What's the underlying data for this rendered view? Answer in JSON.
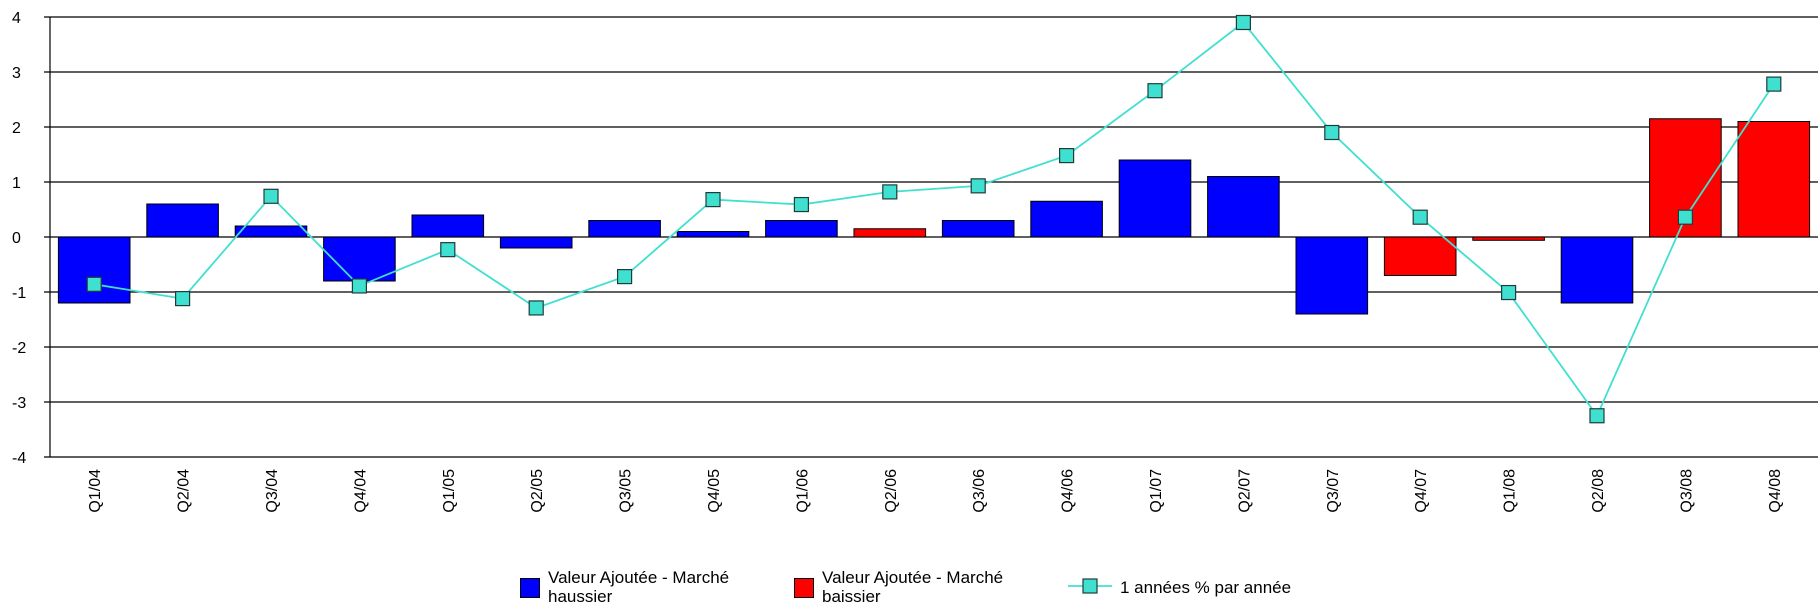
{
  "chart_data": {
    "type": "bar",
    "categories": [
      "Q1/04",
      "Q2/04",
      "Q3/04",
      "Q4/04",
      "Q1/05",
      "Q2/05",
      "Q3/05",
      "Q4/05",
      "Q1/06",
      "Q2/06",
      "Q3/06",
      "Q4/06",
      "Q1/07",
      "Q2/07",
      "Q3/07",
      "Q4/07",
      "Q1/08",
      "Q2/08",
      "Q3/08",
      "Q4/08"
    ],
    "series": [
      {
        "name": "Valeur Ajoutée - Marché haussier",
        "type": "bar",
        "color": "#0000ff",
        "values": [
          -1.2,
          0.6,
          0.2,
          -0.8,
          0.4,
          -0.2,
          0.3,
          0.1,
          0.3,
          null,
          0.3,
          0.65,
          1.4,
          1.1,
          -1.4,
          null,
          null,
          -1.2,
          null,
          null
        ]
      },
      {
        "name": "Valeur Ajoutée - Marché baissier",
        "type": "bar",
        "color": "#ff0000",
        "values": [
          null,
          null,
          null,
          null,
          null,
          null,
          null,
          null,
          null,
          0.15,
          null,
          null,
          null,
          null,
          null,
          -0.7,
          -0.06,
          null,
          2.15,
          2.1
        ]
      },
      {
        "name": "1 années % par année",
        "type": "line",
        "color": "#40e0d0",
        "values": [
          -0.86,
          -1.12,
          0.74,
          -0.89,
          -0.23,
          -1.29,
          -0.72,
          0.68,
          0.59,
          0.82,
          0.93,
          1.48,
          2.66,
          3.9,
          1.9,
          0.36,
          -1.01,
          -3.25,
          0.36,
          2.78
        ]
      }
    ],
    "ylim": [
      -4,
      4
    ],
    "yticks": [
      -4,
      -3,
      -2,
      -1,
      0,
      1,
      2,
      3,
      4
    ],
    "grid": true
  }
}
